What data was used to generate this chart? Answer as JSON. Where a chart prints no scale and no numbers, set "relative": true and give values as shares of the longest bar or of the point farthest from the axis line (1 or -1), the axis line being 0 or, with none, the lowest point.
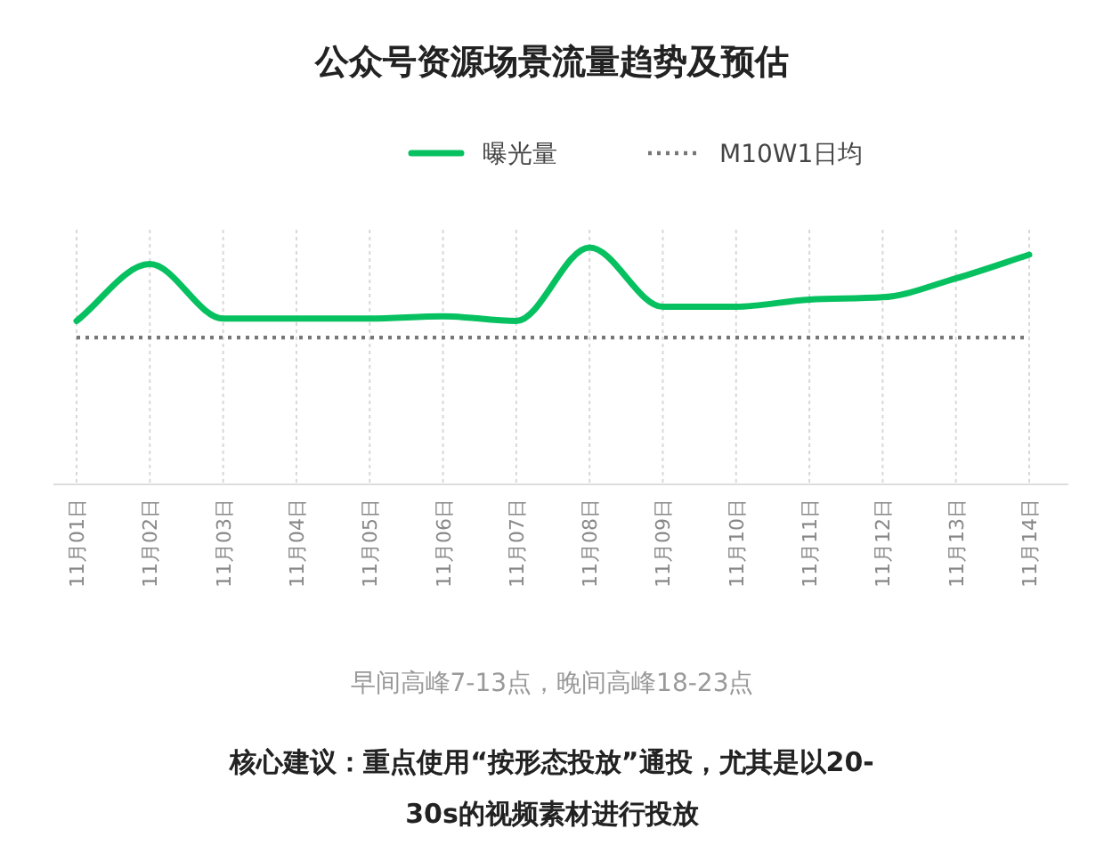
{
  "chart_data": {
    "type": "line",
    "title": "公众号资源场景流量趋势及预估",
    "categories": [
      "11月01日",
      "11月02日",
      "11月03日",
      "11月04日",
      "11月05日",
      "11月06日",
      "11月07日",
      "11月08日",
      "11月09日",
      "11月10日",
      "11月11日",
      "11月12日",
      "11月13日",
      "11月14日"
    ],
    "series": [
      {
        "name": "曝光量",
        "color": "#07c160",
        "values": [
          0.69,
          0.93,
          0.7,
          0.7,
          0.7,
          0.71,
          0.69,
          1,
          0.75,
          0.75,
          0.78,
          0.79,
          0.87,
          0.97
        ]
      }
    ],
    "relative": true,
    "ref_lines": [
      {
        "axis": "y",
        "value": 0.62,
        "label": "M10W1日均",
        "color": "#777777",
        "line_style": "dotted"
      }
    ],
    "annotations": [
      "早间高峰7-13点，晚间高峰18-23点",
      "核心建议：重点使用“按形态投放”通投，尤其是以20-30s的视频素材进行投放"
    ],
    "legend": "top",
    "grid": "x"
  }
}
